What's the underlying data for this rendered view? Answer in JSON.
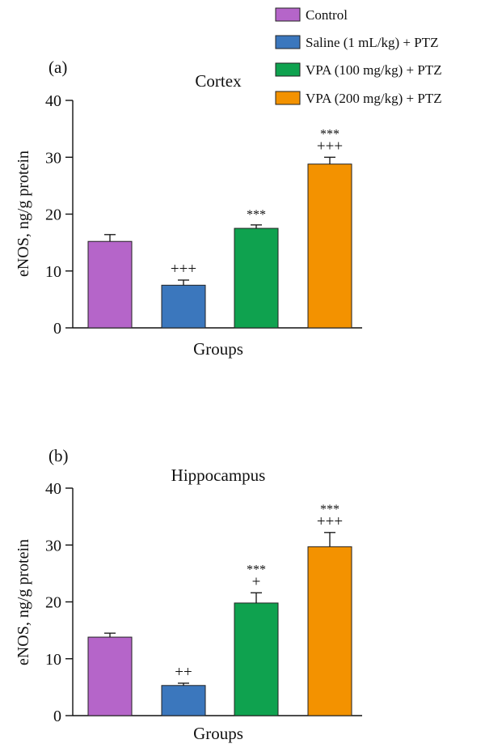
{
  "legend": [
    {
      "label": "Control",
      "color": "#b565c9"
    },
    {
      "label": "Saline (1 mL/kg) + PTZ",
      "color": "#3b77bd"
    },
    {
      "label": "VPA (100 mg/kg) + PTZ",
      "color": "#0fa24f"
    },
    {
      "label": "VPA (200 mg/kg) + PTZ",
      "color": "#f39200"
    }
  ],
  "chart_data": [
    {
      "type": "bar",
      "panel": "(a)",
      "title": "Cortex",
      "xlabel": "Groups",
      "ylabel": "eNOS, ng/g protein",
      "ylim": [
        0,
        40
      ],
      "yticks": [
        0,
        10,
        20,
        30,
        40
      ],
      "grid": false,
      "legend_position": "top-right",
      "categories": [
        "Control",
        "Saline (1 mL/kg) + PTZ",
        "VPA (100 mg/kg) + PTZ",
        "VPA (200 mg/kg) + PTZ"
      ],
      "values": [
        15.2,
        7.5,
        17.5,
        28.8
      ],
      "errors": [
        1.2,
        0.9,
        0.6,
        1.2
      ],
      "annotations": [
        [],
        [
          "+++"
        ],
        [
          "***"
        ],
        [
          "***",
          "+++"
        ]
      ]
    },
    {
      "type": "bar",
      "panel": "(b)",
      "title": "Hippocampus",
      "xlabel": "Groups",
      "ylabel": "eNOS, ng/g protein",
      "ylim": [
        0,
        40
      ],
      "yticks": [
        0,
        10,
        20,
        30,
        40
      ],
      "grid": false,
      "categories": [
        "Control",
        "Saline (1 mL/kg) + PTZ",
        "VPA (100 mg/kg) + PTZ",
        "VPA (200 mg/kg) + PTZ"
      ],
      "values": [
        13.8,
        5.3,
        19.8,
        29.7
      ],
      "errors": [
        0.7,
        0.4,
        1.8,
        2.5
      ],
      "annotations": [
        [],
        [
          "++"
        ],
        [
          "***",
          "+"
        ],
        [
          "***",
          "+++"
        ]
      ]
    }
  ]
}
